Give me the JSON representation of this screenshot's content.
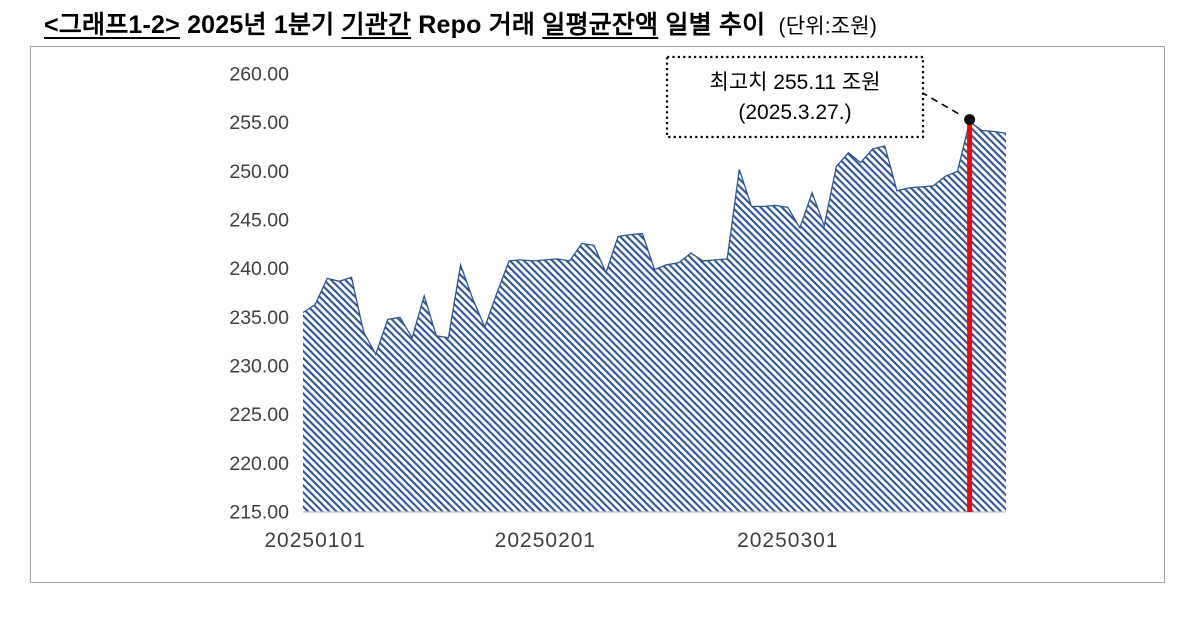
{
  "page": {
    "background": "#ffffff"
  },
  "title": {
    "segments": [
      {
        "text": "<그래프1-2>",
        "underline": true
      },
      {
        "text": " 2025년 1분기 ",
        "underline": false
      },
      {
        "text": "기관간",
        "underline": true
      },
      {
        "text": " Repo 거래 ",
        "underline": false
      },
      {
        "text": "일평균잔액",
        "underline": true
      },
      {
        "text": " 일별 추이",
        "underline": false
      }
    ],
    "unit_label": "(단위:조원)"
  },
  "chart_data": {
    "type": "area",
    "title": "2025년 1분기 기관간 Repo 거래 일평균잔액 일별 추이",
    "unit": "조원",
    "xlabel": "",
    "ylabel": "",
    "ylim": [
      215,
      260
    ],
    "y_tick_step": 5,
    "grid": false,
    "legend": false,
    "y_tick_labels": [
      "260.00",
      "255.00",
      "250.00",
      "245.00",
      "240.00",
      "235.00",
      "230.00",
      "225.00",
      "220.00",
      "215.00"
    ],
    "x_ticks": [
      {
        "index": 1,
        "label": "20250101"
      },
      {
        "index": 20,
        "label": "20250201"
      },
      {
        "index": 40,
        "label": "20250301"
      }
    ],
    "series": [
      {
        "name": "기관간 Repo 거래 일평균잔액",
        "values": [
          235.5,
          236.3,
          239.0,
          238.7,
          239.1,
          233.5,
          231.2,
          234.8,
          235.0,
          232.9,
          237.2,
          233.1,
          232.9,
          240.4,
          236.9,
          234.0,
          237.5,
          240.8,
          240.9,
          240.8,
          240.9,
          241.0,
          240.8,
          242.6,
          242.4,
          239.6,
          243.3,
          243.5,
          243.6,
          239.9,
          240.4,
          240.6,
          241.6,
          240.8,
          240.9,
          241.0,
          250.2,
          246.4,
          246.4,
          246.5,
          246.3,
          244.2,
          247.8,
          244.4,
          250.5,
          251.9,
          250.9,
          252.3,
          252.6,
          248.0,
          248.3,
          248.4,
          248.5,
          249.5,
          250.0,
          255.11,
          254.2,
          254.1,
          253.9
        ]
      }
    ],
    "peak": {
      "index": 55,
      "value": 255.11,
      "line_color": "#ff0000",
      "marker_color": "#0d0d0d"
    },
    "annotation": {
      "line1": "최고치 255.11 조원",
      "line2": "(2025.3.27.)"
    },
    "colors": {
      "series": "#2F5597",
      "axis": "#bfbfbf",
      "tick_text": "#404040"
    }
  }
}
